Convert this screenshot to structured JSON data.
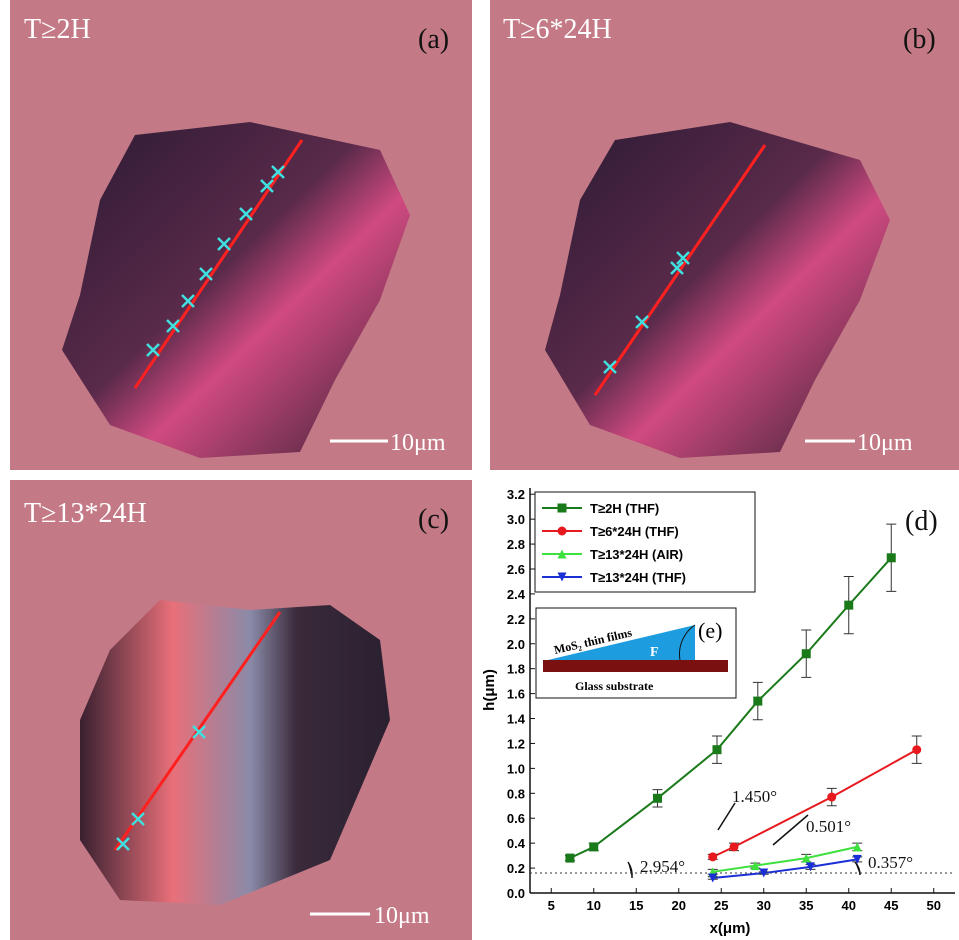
{
  "panels": [
    {
      "label": "T≥2H",
      "tag": "(a)",
      "scale": "10μm"
    },
    {
      "label": "T≥6*24H",
      "tag": "(b)",
      "scale": "10μm"
    },
    {
      "label": "T≥13*24H",
      "tag": "(c)",
      "scale": "10μm"
    }
  ],
  "chart_data": {
    "type": "line",
    "tag": "(d)",
    "x_label": "x(μm)",
    "y_label": "h(μm)",
    "xlim": [
      2.5,
      52.5
    ],
    "xticks": [
      5,
      10,
      15,
      20,
      25,
      30,
      35,
      40,
      45,
      50
    ],
    "ylim": [
      0,
      3.25
    ],
    "yticks": [
      {
        "value": 0,
        "label": "0.0"
      },
      0.2,
      0.4,
      0.6,
      0.8,
      {
        "value": 1,
        "label": "1.0"
      },
      1.2,
      1.4,
      1.6,
      1.8,
      {
        "value": 2,
        "label": "2.0"
      },
      2.2,
      2.4,
      2.6,
      2.8,
      {
        "value": 3,
        "label": "3.0"
      },
      3.2
    ],
    "hline": 0.16,
    "series": [
      {
        "name": "T≥2H (THF)",
        "color": "#1a7a1a",
        "marker": "square",
        "x": [
          7.2,
          10,
          17.5,
          24.5,
          29.3,
          35,
          40,
          45
        ],
        "values": [
          0.28,
          0.37,
          0.76,
          1.15,
          1.54,
          1.92,
          2.31,
          2.69
        ],
        "errors": [
          0.02,
          0.03,
          0.07,
          0.11,
          0.15,
          0.19,
          0.23,
          0.27
        ]
      },
      {
        "name": "T≥6*24H (THF)",
        "color": "#e8191e",
        "marker": "circle",
        "x": [
          24,
          26.5,
          38,
          48
        ],
        "values": [
          0.29,
          0.37,
          0.77,
          1.15
        ],
        "errors": [
          0.02,
          0.03,
          0.07,
          0.11
        ]
      },
      {
        "name": "T≥13*24H (AIR)",
        "color": "#3ee03e",
        "marker": "triangle-up",
        "x": [
          24,
          29,
          35,
          41
        ],
        "values": [
          0.17,
          0.22,
          0.28,
          0.37
        ],
        "errors": [
          0.02,
          0.02,
          0.03,
          0.03
        ]
      },
      {
        "name": "T≥13*24H (THF)",
        "color": "#1a2fd6",
        "marker": "triangle-down",
        "x": [
          24,
          30,
          35.5,
          41
        ],
        "values": [
          0.12,
          0.16,
          0.21,
          0.27
        ],
        "errors": [
          0.01,
          0.01,
          0.02,
          0.02
        ]
      }
    ],
    "annotations": [
      "2.954°",
      "1.450°",
      "0.501°",
      "0.357°"
    ],
    "inset": {
      "tag": "(e)",
      "film": "MoS₂ thin films",
      "force": "F",
      "substrate": "Glass substrate"
    }
  }
}
